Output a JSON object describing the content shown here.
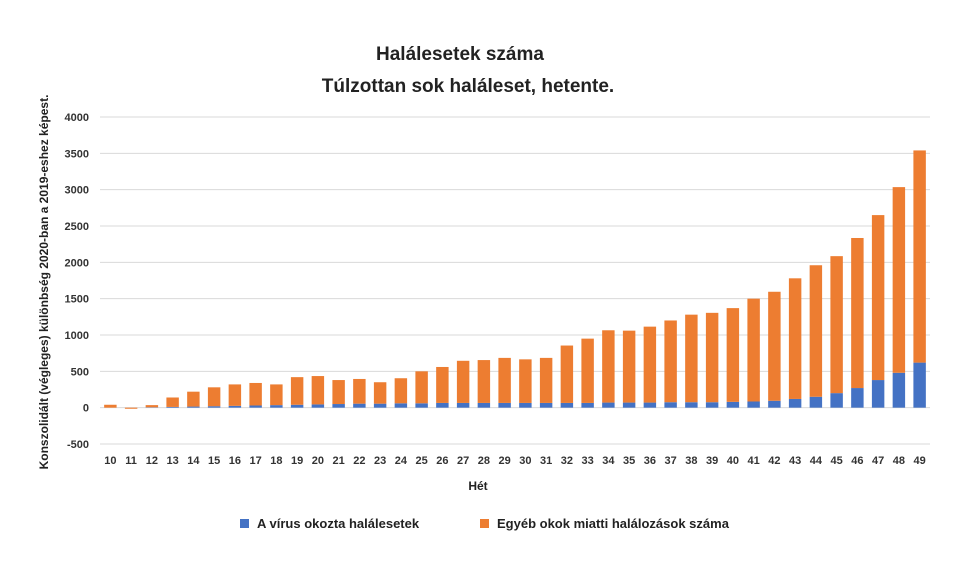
{
  "chart_data": {
    "type": "bar",
    "stacked": true,
    "title": "Halálesetek száma",
    "subtitle": "Túlzottan sok haláleset, hetente.",
    "xlabel": "Hét",
    "ylabel": "Konszolidált (végleges) különbség 2020-ban a 2019-eshez képest.",
    "ylim": [
      -500,
      4000
    ],
    "yticks": [
      -500,
      0,
      500,
      1000,
      1500,
      2000,
      2500,
      3000,
      3500,
      4000
    ],
    "grid": true,
    "legend_position": "bottom",
    "categories": [
      "10",
      "11",
      "12",
      "13",
      "14",
      "15",
      "16",
      "17",
      "18",
      "19",
      "20",
      "21",
      "22",
      "23",
      "24",
      "25",
      "26",
      "27",
      "28",
      "29",
      "30",
      "31",
      "32",
      "33",
      "34",
      "35",
      "36",
      "37",
      "38",
      "39",
      "40",
      "41",
      "42",
      "43",
      "44",
      "45",
      "46",
      "47",
      "48",
      "49"
    ],
    "series": [
      {
        "name": "A vírus okozta halálesetek",
        "color": "#4472c4",
        "values": [
          0,
          0,
          5,
          10,
          15,
          20,
          25,
          30,
          35,
          40,
          45,
          50,
          55,
          55,
          60,
          60,
          65,
          65,
          65,
          65,
          65,
          65,
          65,
          65,
          70,
          70,
          70,
          75,
          75,
          75,
          80,
          85,
          95,
          120,
          150,
          200,
          270,
          380,
          480,
          620
        ]
      },
      {
        "name": "Egyéb okok miatti halálozások száma",
        "color": "#ed7d31",
        "values": [
          40,
          -15,
          30,
          130,
          205,
          260,
          295,
          310,
          285,
          380,
          390,
          330,
          340,
          295,
          345,
          440,
          495,
          580,
          590,
          620,
          600,
          620,
          790,
          885,
          995,
          990,
          1045,
          1125,
          1205,
          1230,
          1290,
          1415,
          1500,
          1660,
          1810,
          1885,
          2065,
          2270,
          2555,
          2920
        ]
      }
    ]
  }
}
